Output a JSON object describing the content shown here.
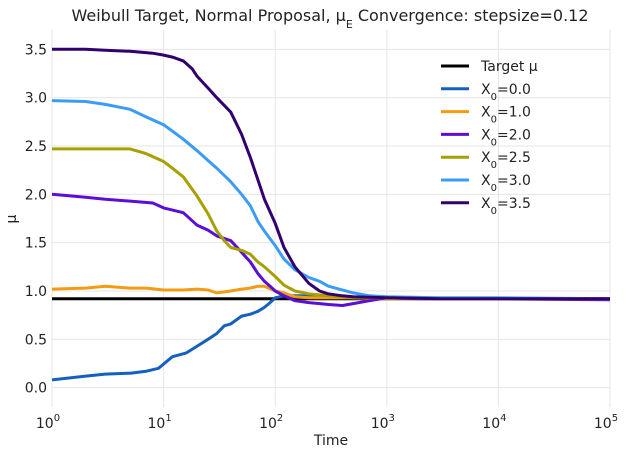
{
  "chart_data": {
    "type": "line",
    "title": "Weibull Target, Normal Proposal, μ_E Convergence: stepsize=0.12",
    "xlabel": "Time",
    "ylabel": "μ",
    "xscale": "log",
    "xlim": [
      1,
      100000
    ],
    "ylim": [
      -0.2,
      3.7
    ],
    "x_ticks": [
      {
        "value": 1,
        "base": "10",
        "exp": "0"
      },
      {
        "value": 10,
        "base": "10",
        "exp": "1"
      },
      {
        "value": 100,
        "base": "10",
        "exp": "2"
      },
      {
        "value": 1000,
        "base": "10",
        "exp": "3"
      },
      {
        "value": 10000,
        "base": "10",
        "exp": "4"
      },
      {
        "value": 100000,
        "base": "10",
        "exp": "5"
      }
    ],
    "y_ticks": [
      "0.0",
      "0.5",
      "1.0",
      "1.5",
      "2.0",
      "2.5",
      "3.0",
      "3.5"
    ],
    "grid": true,
    "legend_position": "top-right",
    "target": {
      "name": "Target μ",
      "value": 0.92,
      "color": "#000000"
    },
    "series": [
      {
        "name": "X₀=0.0",
        "color": "#1560bd",
        "x": [
          1,
          2,
          3,
          5,
          7,
          9,
          12,
          16,
          20,
          25,
          30,
          35,
          40,
          50,
          60,
          70,
          80,
          90,
          100,
          120,
          150,
          200,
          300,
          500,
          1000,
          3000,
          10000,
          100000
        ],
        "y": [
          0.08,
          0.12,
          0.14,
          0.15,
          0.17,
          0.2,
          0.32,
          0.36,
          0.43,
          0.5,
          0.56,
          0.64,
          0.66,
          0.74,
          0.76,
          0.79,
          0.83,
          0.88,
          0.93,
          0.95,
          0.95,
          0.95,
          0.94,
          0.93,
          0.92,
          0.92,
          0.92,
          0.92
        ]
      },
      {
        "name": "X₀=1.0",
        "color": "#f39c12",
        "x": [
          1,
          2,
          3,
          5,
          7,
          10,
          15,
          20,
          25,
          30,
          40,
          50,
          60,
          70,
          80,
          100,
          120,
          150,
          200,
          300,
          500,
          1000,
          3000,
          10000,
          100000
        ],
        "y": [
          1.02,
          1.03,
          1.05,
          1.03,
          1.03,
          1.01,
          1.01,
          1.02,
          1.01,
          0.98,
          1.0,
          1.02,
          1.03,
          1.05,
          1.05,
          1.0,
          0.98,
          0.94,
          0.93,
          0.93,
          0.93,
          0.92,
          0.92,
          0.92,
          0.92
        ]
      },
      {
        "name": "X₀=2.0",
        "color": "#5b0ed6",
        "x": [
          1,
          2,
          3,
          5,
          8,
          10,
          15,
          20,
          25,
          30,
          40,
          50,
          60,
          70,
          80,
          90,
          100,
          120,
          150,
          200,
          250,
          300,
          400,
          500,
          700,
          1000,
          2000,
          5000,
          100000
        ],
        "y": [
          2.0,
          1.97,
          1.95,
          1.93,
          1.91,
          1.86,
          1.81,
          1.68,
          1.63,
          1.57,
          1.52,
          1.4,
          1.3,
          1.18,
          1.1,
          1.05,
          1.0,
          0.95,
          0.9,
          0.88,
          0.87,
          0.86,
          0.85,
          0.87,
          0.9,
          0.93,
          0.92,
          0.92,
          0.91
        ]
      },
      {
        "name": "X₀=2.5",
        "color": "#a6a000",
        "x": [
          1,
          2,
          3,
          5,
          7,
          10,
          12,
          15,
          20,
          25,
          30,
          35,
          40,
          50,
          60,
          70,
          80,
          100,
          120,
          150,
          200,
          300,
          500,
          1000,
          3000,
          100000
        ],
        "y": [
          2.47,
          2.47,
          2.47,
          2.47,
          2.42,
          2.34,
          2.27,
          2.18,
          1.98,
          1.8,
          1.62,
          1.52,
          1.45,
          1.42,
          1.38,
          1.3,
          1.25,
          1.15,
          1.06,
          1.0,
          0.97,
          0.95,
          0.93,
          0.93,
          0.92,
          0.92
        ]
      },
      {
        "name": "X₀=3.0",
        "color": "#3b9cf7",
        "x": [
          1,
          2,
          3,
          5,
          7,
          10,
          15,
          20,
          25,
          30,
          40,
          50,
          60,
          70,
          80,
          100,
          120,
          150,
          200,
          250,
          300,
          500,
          700,
          1000,
          3000,
          10000,
          100000
        ],
        "y": [
          2.97,
          2.96,
          2.93,
          2.88,
          2.8,
          2.72,
          2.57,
          2.45,
          2.35,
          2.27,
          2.13,
          2.0,
          1.88,
          1.72,
          1.62,
          1.47,
          1.33,
          1.22,
          1.14,
          1.1,
          1.05,
          0.98,
          0.95,
          0.94,
          0.93,
          0.93,
          0.92
        ]
      },
      {
        "name": "X₀=3.5",
        "color": "#32006e",
        "x": [
          1,
          2,
          3,
          5,
          8,
          10,
          12,
          15,
          18,
          20,
          25,
          30,
          40,
          50,
          60,
          70,
          80,
          100,
          120,
          150,
          200,
          250,
          300,
          400,
          500,
          1000,
          3000,
          10000,
          100000
        ],
        "y": [
          3.5,
          3.5,
          3.49,
          3.48,
          3.46,
          3.44,
          3.42,
          3.38,
          3.3,
          3.22,
          3.1,
          3.0,
          2.85,
          2.62,
          2.38,
          2.15,
          1.95,
          1.7,
          1.45,
          1.25,
          1.08,
          1.0,
          0.97,
          0.95,
          0.94,
          0.93,
          0.92,
          0.92,
          0.92
        ]
      }
    ]
  }
}
